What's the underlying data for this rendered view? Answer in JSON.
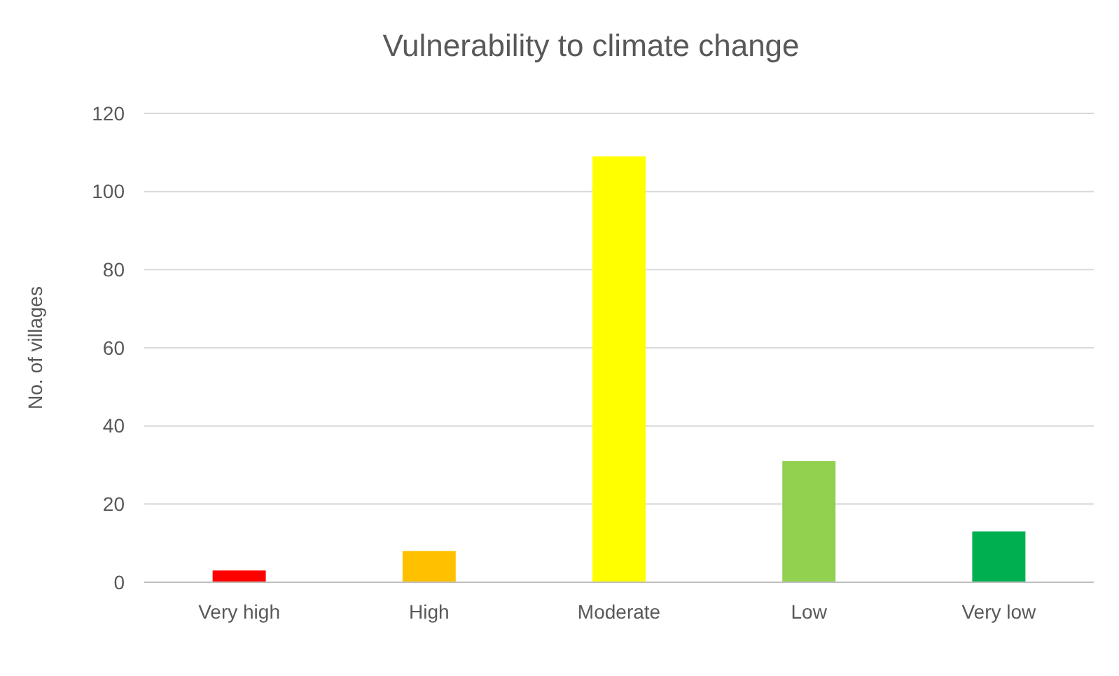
{
  "chart_data": {
    "type": "bar",
    "title": "Vulnerability to climate change",
    "ylabel": "No. of villages",
    "categories": [
      "Very high",
      "High",
      "Moderate",
      "Low",
      "Very low"
    ],
    "values": [
      3,
      8,
      109,
      31,
      13
    ],
    "colors": [
      "#ff0000",
      "#ffc000",
      "#ffff00",
      "#92d050",
      "#00b050"
    ],
    "ylim": [
      0,
      120
    ],
    "yticks": [
      0,
      20,
      40,
      60,
      80,
      100,
      120
    ],
    "grid": "y"
  }
}
